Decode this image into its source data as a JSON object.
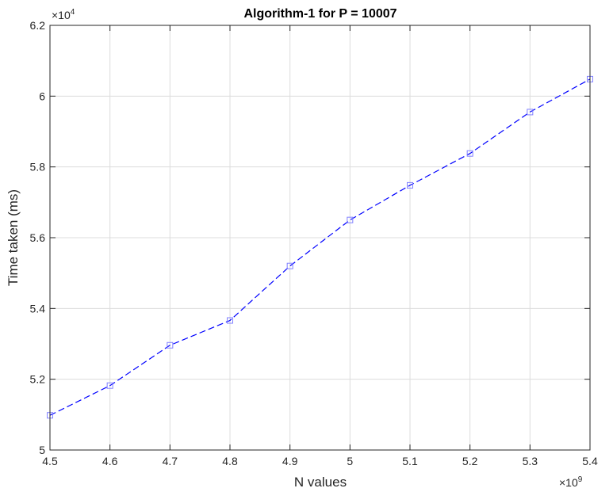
{
  "chart_data": {
    "type": "line",
    "title": "Algorithm-1 for P = 10007",
    "xlabel": "N values",
    "ylabel": "Time taken (ms)",
    "x_multiplier": {
      "base": "×10",
      "exp": "9"
    },
    "y_multiplier": {
      "base": "×10",
      "exp": "4"
    },
    "xlim": [
      4.5,
      5.4
    ],
    "ylim": [
      5.0,
      6.2
    ],
    "x_ticks": [
      4.5,
      4.6,
      4.7,
      4.8,
      4.9,
      5.0,
      5.1,
      5.2,
      5.3,
      5.4
    ],
    "x_tick_labels": [
      "4.5",
      "4.6",
      "4.7",
      "4.8",
      "4.9",
      "5",
      "5.1",
      "5.2",
      "5.3",
      "5.4"
    ],
    "y_ticks": [
      5.0,
      5.2,
      5.4,
      5.6,
      5.8,
      6.0,
      6.2
    ],
    "y_tick_labels": [
      "5",
      "5.2",
      "5.4",
      "5.6",
      "5.8",
      "6",
      "6.2"
    ],
    "grid": true,
    "series": [
      {
        "color": "#0000ff",
        "line_style": "dashed",
        "marker": "square",
        "x": [
          4.5,
          4.6,
          4.7,
          4.8,
          4.9,
          5.0,
          5.1,
          5.2,
          5.3,
          5.4
        ],
        "y": [
          5.098,
          5.182,
          5.296,
          5.366,
          5.52,
          5.65,
          5.748,
          5.838,
          5.955,
          6.048
        ]
      }
    ]
  }
}
